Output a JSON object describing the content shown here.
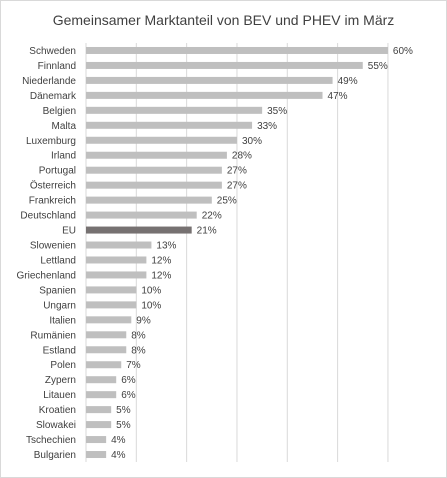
{
  "chart_data": {
    "type": "bar",
    "orientation": "horizontal",
    "title": "Gemeinsamer Marktanteil von BEV und PHEV im März",
    "categories": [
      "Schweden",
      "Finnland",
      "Niederlande",
      "Dänemark",
      "Belgien",
      "Malta",
      "Luxemburg",
      "Irland",
      "Portugal",
      "Österreich",
      "Frankreich",
      "Deutschland",
      "EU",
      "Slowenien",
      "Lettland",
      "Griechenland",
      "Spanien",
      "Ungarn",
      "Italien",
      "Rumänien",
      "Estland",
      "Polen",
      "Zypern",
      "Litauen",
      "Kroatien",
      "Slowakei",
      "Tschechien",
      "Bulgarien"
    ],
    "values": [
      60,
      55,
      49,
      47,
      35,
      33,
      30,
      28,
      27,
      27,
      25,
      22,
      21,
      13,
      12,
      12,
      10,
      10,
      9,
      8,
      8,
      7,
      6,
      6,
      5,
      5,
      4,
      4
    ],
    "value_labels": [
      "60%",
      "55%",
      "49%",
      "47%",
      "35%",
      "33%",
      "30%",
      "28%",
      "27%",
      "27%",
      "25%",
      "22%",
      "21%",
      "13%",
      "12%",
      "12%",
      "10%",
      "10%",
      "9%",
      "8%",
      "8%",
      "7%",
      "6%",
      "6%",
      "5%",
      "5%",
      "4%",
      "4%"
    ],
    "highlight_category": "EU",
    "xlim": [
      0,
      62
    ],
    "grid": "vertical",
    "legend": "none",
    "colors": {
      "bar": "#bfbfbf",
      "highlight": "#767171",
      "grid": "#d9d9d9",
      "text": "#404040"
    }
  }
}
